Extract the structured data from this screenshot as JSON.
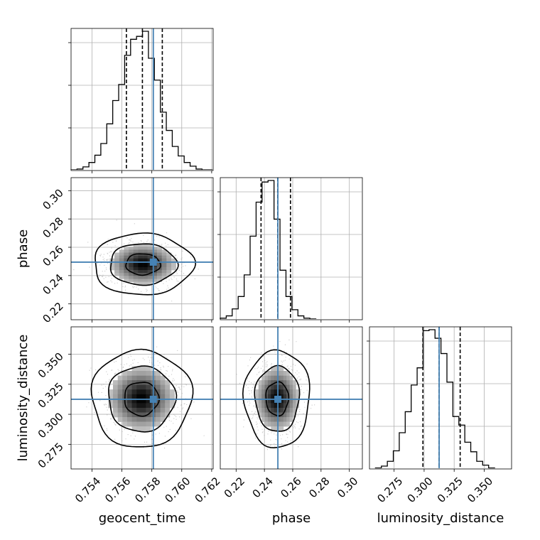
{
  "chart_data": {
    "type": "corner",
    "parameters": [
      "geocent_time",
      "phase",
      "luminosity_distance"
    ],
    "truths": [
      0.7581,
      0.2495,
      0.3125
    ],
    "ranges": [
      [
        0.7526,
        0.7621
      ],
      [
        0.2088,
        0.3092
      ],
      [
        0.2545,
        0.3728
      ]
    ],
    "axis_labels": {
      "x": [
        "geocent_time",
        "phase",
        "luminosity_distance"
      ],
      "y": [
        "",
        "phase",
        "luminosity_distance"
      ]
    },
    "ticks": {
      "geocent_time": [
        0.754,
        0.756,
        0.758,
        0.76,
        0.762
      ],
      "phase": [
        0.22,
        0.24,
        0.26,
        0.28,
        0.3
      ],
      "luminosity_distance": [
        0.275,
        0.3,
        0.325,
        0.35
      ]
    },
    "tick_labels": {
      "geocent_time": [
        "0.754",
        "0.756",
        "0.758",
        "0.760",
        "0.762"
      ],
      "phase": [
        "0.22",
        "0.24",
        "0.26",
        "0.28",
        "0.30"
      ],
      "luminosity_distance": [
        "0.275",
        "0.300",
        "0.325",
        "0.350"
      ]
    },
    "marginals": [
      {
        "parameter": "geocent_time",
        "quantiles": [
          0.7563,
          0.75737,
          0.7587
        ],
        "bin_edges": [
          0.7526,
          0.752998,
          0.753396,
          0.753794,
          0.754192,
          0.75459,
          0.754988,
          0.755386,
          0.755784,
          0.756182,
          0.75658,
          0.756978,
          0.757376,
          0.757774,
          0.758172,
          0.75857,
          0.758968,
          0.759366,
          0.759764,
          0.760162,
          0.76056,
          0.760958,
          0.761356,
          0.7621
        ],
        "counts": [
          1,
          2,
          5,
          11,
          21,
          37,
          64,
          96,
          118,
          158,
          180,
          184,
          191,
          154,
          124,
          80,
          55,
          33,
          20,
          11,
          6,
          2,
          1
        ]
      },
      {
        "parameter": "phase",
        "quantiles": [
          0.2376,
          0.2494,
          0.2584
        ],
        "bin_edges": [
          0.2088,
          0.21302,
          0.21724,
          0.22146,
          0.22568,
          0.2299,
          0.23412,
          0.23834,
          0.24256,
          0.24678,
          0.251,
          0.25522,
          0.25944,
          0.26366,
          0.26788,
          0.2721,
          0.27632,
          0.28054,
          0.28476,
          0.28898,
          0.2932,
          0.29742,
          0.30164,
          0.3092
        ],
        "counts": [
          2,
          5,
          14,
          30,
          58,
          108,
          152,
          178,
          180,
          130,
          64,
          30,
          13,
          5,
          2,
          1,
          0,
          0,
          0,
          0,
          0,
          0,
          0
        ]
      },
      {
        "parameter": "luminosity_distance",
        "quantiles": [
          0.299,
          0.3125,
          0.33
        ],
        "bin_edges": [
          0.2545,
          0.25946,
          0.26442,
          0.26938,
          0.27434,
          0.2793,
          0.28426,
          0.28922,
          0.29418,
          0.29914,
          0.3041,
          0.30906,
          0.31402,
          0.31898,
          0.32394,
          0.3289,
          0.33386,
          0.33882,
          0.34378,
          0.34874,
          0.3537,
          0.35866,
          0.36362,
          0.3728
        ],
        "counts": [
          0,
          1,
          3,
          8,
          19,
          38,
          60,
          88,
          106,
          145,
          146,
          137,
          121,
          91,
          55,
          46,
          28,
          18,
          8,
          4,
          1,
          0,
          0
        ]
      }
    ],
    "joint": [
      {
        "x": "geocent_time",
        "y": "phase",
        "center": [
          0.7574,
          0.248
        ],
        "sigma": [
          0.00115,
          0.0075
        ],
        "contour_levels": [
          0.39,
          0.86,
          0.99
        ]
      },
      {
        "x": "geocent_time",
        "y": "luminosity_distance",
        "center": [
          0.7573,
          0.313
        ],
        "sigma": [
          0.00115,
          0.014
        ],
        "contour_levels": [
          0.39,
          0.86,
          0.99
        ]
      },
      {
        "x": "phase",
        "y": "luminosity_distance",
        "center": [
          0.249,
          0.313
        ],
        "sigma": [
          0.008,
          0.014
        ],
        "contour_levels": [
          0.39,
          0.86,
          0.99
        ]
      }
    ],
    "grid": true,
    "colors": {
      "hist": "#000000",
      "truth": "#4682b4",
      "grid": "#b0b0b0",
      "points": "#9a9a9a"
    }
  }
}
